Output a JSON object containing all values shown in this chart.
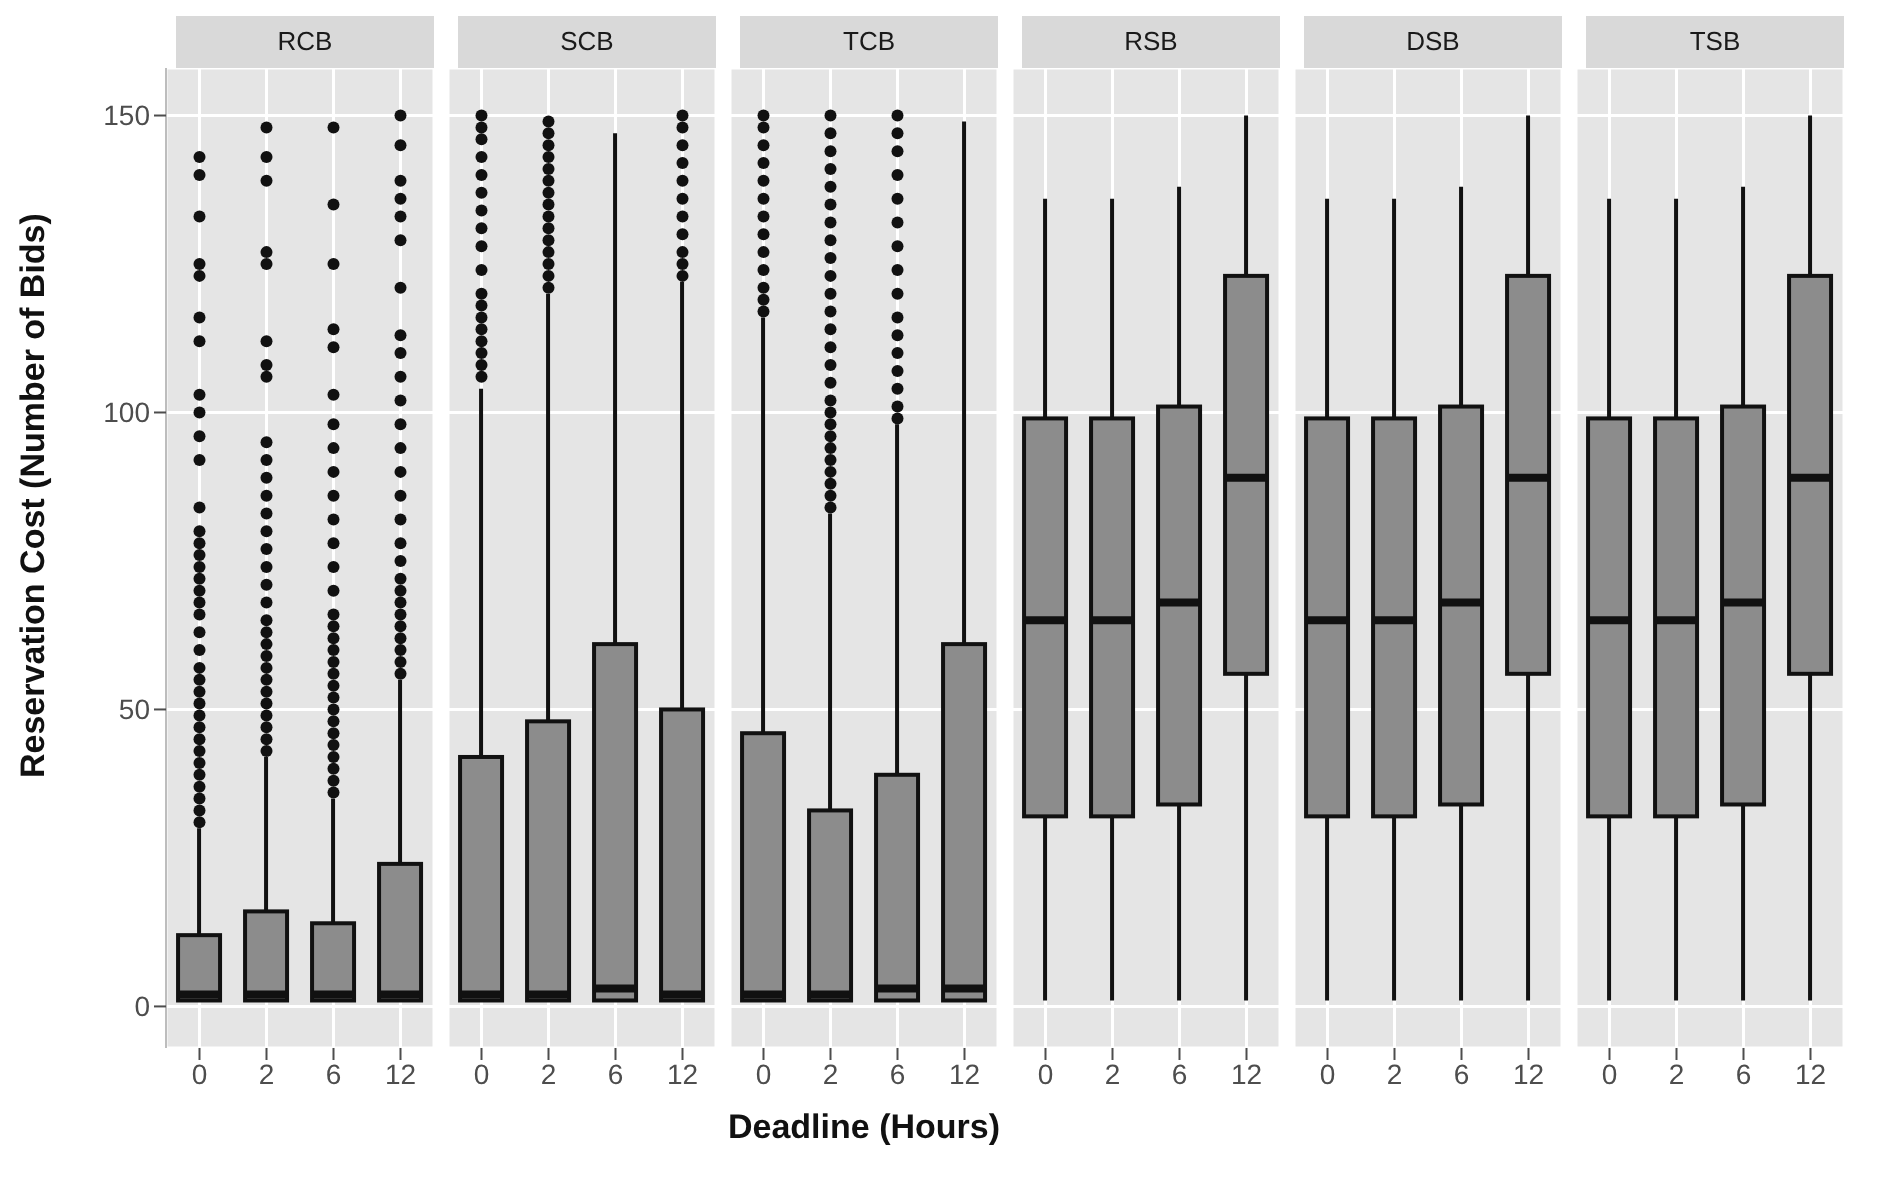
{
  "chart_data": [
    {
      "type": "box",
      "title": "RCB",
      "ylabel": "Reservation Cost (Number of Bids)",
      "categories": [
        "0",
        "2",
        "6",
        "12"
      ],
      "color": "#8c8c8c",
      "ylim": [
        -7,
        158
      ],
      "yticks": [
        0,
        50,
        100,
        150
      ],
      "grid": true,
      "boxes": [
        {
          "low": 1,
          "q1": 1,
          "median": 2,
          "q3": 12,
          "high": 30,
          "outliers": [
            31,
            33,
            35,
            37,
            39,
            41,
            43,
            45,
            47,
            49,
            51,
            53,
            55,
            57,
            60,
            63,
            66,
            68,
            70,
            72,
            74,
            76,
            78,
            80,
            84,
            92,
            96,
            100,
            103,
            112,
            116,
            123,
            125,
            133,
            140,
            143
          ]
        },
        {
          "low": 1,
          "q1": 1,
          "median": 2,
          "q3": 16,
          "high": 42,
          "outliers": [
            43,
            45,
            47,
            49,
            51,
            53,
            55,
            57,
            59,
            61,
            63,
            65,
            68,
            71,
            74,
            77,
            80,
            83,
            86,
            89,
            92,
            95,
            106,
            108,
            112,
            125,
            127,
            139,
            143,
            148
          ]
        },
        {
          "low": 1,
          "q1": 1,
          "median": 2,
          "q3": 14,
          "high": 35,
          "outliers": [
            36,
            38,
            40,
            42,
            44,
            46,
            48,
            50,
            52,
            54,
            56,
            58,
            60,
            62,
            64,
            66,
            70,
            74,
            78,
            82,
            86,
            90,
            94,
            98,
            103,
            111,
            114,
            125,
            135,
            148
          ]
        },
        {
          "low": 1,
          "q1": 1,
          "median": 2,
          "q3": 24,
          "high": 55,
          "outliers": [
            56,
            58,
            60,
            62,
            64,
            66,
            68,
            70,
            72,
            75,
            78,
            82,
            86,
            90,
            94,
            98,
            102,
            106,
            110,
            113,
            121,
            129,
            133,
            136,
            139,
            145,
            150
          ]
        }
      ]
    },
    {
      "type": "box",
      "title": "SCB",
      "categories": [
        "0",
        "2",
        "6",
        "12"
      ],
      "color": "#8c8c8c",
      "ylim": [
        -7,
        158
      ],
      "yticks": [
        0,
        50,
        100,
        150
      ],
      "grid": true,
      "tick_labels": "x",
      "boxes": [
        {
          "low": 1,
          "q1": 1,
          "median": 2,
          "q3": 42,
          "high": 104,
          "outliers": [
            106,
            108,
            110,
            112,
            114,
            116,
            118,
            120,
            124,
            128,
            131,
            134,
            137,
            140,
            143,
            146,
            148,
            150
          ]
        },
        {
          "low": 1,
          "q1": 1,
          "median": 2,
          "q3": 48,
          "high": 120,
          "outliers": [
            121,
            123,
            125,
            127,
            129,
            131,
            133,
            135,
            137,
            139,
            141,
            143,
            145,
            147,
            149
          ]
        },
        {
          "low": 1,
          "q1": 1,
          "median": 3,
          "q3": 61,
          "high": 147
        },
        {
          "low": 1,
          "q1": 1,
          "median": 2,
          "q3": 50,
          "high": 122,
          "outliers": [
            123,
            125,
            127,
            130,
            133,
            136,
            139,
            142,
            145,
            148,
            150
          ]
        }
      ]
    },
    {
      "type": "box",
      "title": "TCB",
      "xlabel": "Deadline (Hours)",
      "categories": [
        "0",
        "2",
        "6",
        "12"
      ],
      "color": "#8c8c8c",
      "ylim": [
        -7,
        158
      ],
      "yticks": [
        0,
        50,
        100,
        150
      ],
      "grid": true,
      "tick_labels": "x",
      "boxes": [
        {
          "low": 1,
          "q1": 1,
          "median": 2,
          "q3": 46,
          "high": 116,
          "outliers": [
            117,
            119,
            121,
            124,
            127,
            130,
            133,
            136,
            139,
            142,
            145,
            148,
            150
          ]
        },
        {
          "low": 1,
          "q1": 1,
          "median": 2,
          "q3": 33,
          "high": 83,
          "outliers": [
            84,
            86,
            88,
            90,
            92,
            94,
            96,
            98,
            100,
            102,
            105,
            108,
            111,
            114,
            117,
            120,
            123,
            126,
            129,
            132,
            135,
            138,
            141,
            144,
            147,
            150
          ]
        },
        {
          "low": 1,
          "q1": 1,
          "median": 3,
          "q3": 39,
          "high": 98,
          "outliers": [
            99,
            101,
            104,
            107,
            110,
            113,
            116,
            120,
            124,
            128,
            132,
            136,
            140,
            144,
            147,
            150
          ]
        },
        {
          "low": 1,
          "q1": 1,
          "median": 3,
          "q3": 61,
          "high": 149
        }
      ]
    },
    {
      "type": "box",
      "title": "RSB",
      "categories": [
        "0",
        "2",
        "6",
        "12"
      ],
      "color": "#8c8c8c",
      "ylim": [
        -7,
        158
      ],
      "yticks": [
        0,
        50,
        100,
        150
      ],
      "grid": true,
      "tick_labels": "x",
      "boxes": [
        {
          "low": 1,
          "q1": 32,
          "median": 65,
          "q3": 99,
          "high": 136
        },
        {
          "low": 1,
          "q1": 32,
          "median": 65,
          "q3": 99,
          "high": 136
        },
        {
          "low": 1,
          "q1": 34,
          "median": 68,
          "q3": 101,
          "high": 138
        },
        {
          "low": 1,
          "q1": 56,
          "median": 89,
          "q3": 123,
          "high": 150
        }
      ]
    },
    {
      "type": "box",
      "title": "DSB",
      "categories": [
        "0",
        "2",
        "6",
        "12"
      ],
      "color": "#8c8c8c",
      "ylim": [
        -7,
        158
      ],
      "yticks": [
        0,
        50,
        100,
        150
      ],
      "grid": true,
      "tick_labels": "x",
      "boxes": [
        {
          "low": 1,
          "q1": 32,
          "median": 65,
          "q3": 99,
          "high": 136
        },
        {
          "low": 1,
          "q1": 32,
          "median": 65,
          "q3": 99,
          "high": 136
        },
        {
          "low": 1,
          "q1": 34,
          "median": 68,
          "q3": 101,
          "high": 138
        },
        {
          "low": 1,
          "q1": 56,
          "median": 89,
          "q3": 123,
          "high": 150
        }
      ]
    },
    {
      "type": "box",
      "title": "TSB",
      "categories": [
        "0",
        "2",
        "6",
        "12"
      ],
      "color": "#8c8c8c",
      "ylim": [
        -7,
        158
      ],
      "yticks": [
        0,
        50,
        100,
        150
      ],
      "grid": true,
      "tick_labels": "x",
      "boxes": [
        {
          "low": 1,
          "q1": 32,
          "median": 65,
          "q3": 99,
          "high": 136
        },
        {
          "low": 1,
          "q1": 32,
          "median": 65,
          "q3": 99,
          "high": 136
        },
        {
          "low": 1,
          "q1": 34,
          "median": 68,
          "q3": 101,
          "high": 138
        },
        {
          "low": 1,
          "q1": 56,
          "median": 89,
          "q3": 123,
          "high": 150
        }
      ]
    }
  ]
}
